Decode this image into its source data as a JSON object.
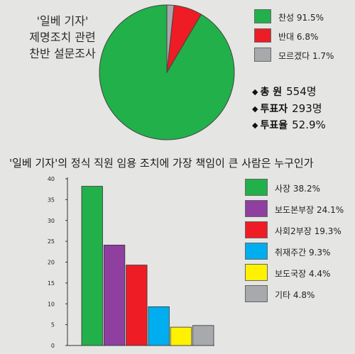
{
  "pie_title_lines": [
    "'일베 기자'",
    "제명조치 관련",
    "찬반 설문조사"
  ],
  "stats": [
    {
      "label": "총    원",
      "value": "554명"
    },
    {
      "label": "투표자",
      "value": "293명"
    },
    {
      "label": "투표율",
      "value": "52.9%"
    }
  ],
  "bar_title": "'일베 기자'의 정식 직원 임용 조치에 가장 책임이 큰 사람은 누구인가",
  "chart_data": [
    {
      "type": "pie",
      "slices": [
        {
          "label": "찬성 91.5%",
          "value": 91.5,
          "color": "#22b04a"
        },
        {
          "label": "반대 6.8%",
          "value": 6.8,
          "color": "#ee1c25"
        },
        {
          "label": "모르겠다 1.7%",
          "value": 1.7,
          "color": "#a7a9ac"
        }
      ],
      "legend_position": "right"
    },
    {
      "type": "bar",
      "categories": [
        "사장 38.2%",
        "보도본부장 24.1%",
        "사회2부장 19.3%",
        "취재주간 9.3%",
        "보도국장 4.4%",
        "기타 4.8%"
      ],
      "values": [
        38.2,
        24.1,
        19.3,
        9.3,
        4.4,
        4.8
      ],
      "colors": [
        "#22b04a",
        "#8e3fa0",
        "#ee1c25",
        "#00aeef",
        "#fff200",
        "#a7a9ac"
      ],
      "ylim": [
        0,
        40
      ],
      "yticks": [
        "0",
        "5",
        "10",
        "15",
        "20",
        "25",
        "30",
        "35",
        "40"
      ],
      "grid": false,
      "legend_position": "right"
    }
  ]
}
